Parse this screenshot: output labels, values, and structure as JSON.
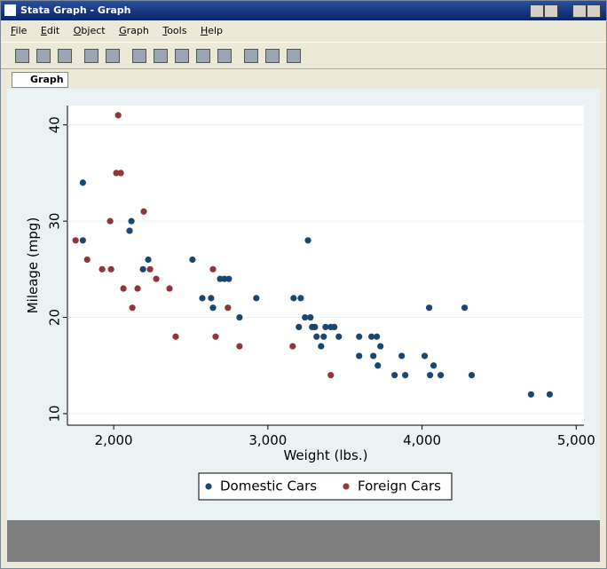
{
  "window": {
    "title": "Stata Graph - Graph",
    "menu": [
      "File",
      "Edit",
      "Object",
      "Graph",
      "Tools",
      "Help"
    ],
    "tab": "Graph"
  },
  "chart_data": {
    "type": "scatter",
    "x_label": "Weight (lbs.)",
    "y_label": "Mileage (mpg)",
    "xlim": [
      1700,
      5050
    ],
    "ylim": [
      8.8,
      42
    ],
    "xticks": [
      {
        "value": 2000,
        "label": "2,000"
      },
      {
        "value": 3000,
        "label": "3,000"
      },
      {
        "value": 4000,
        "label": "4,000"
      },
      {
        "value": 5000,
        "label": "5,000"
      }
    ],
    "yticks": [
      10,
      20,
      30,
      40
    ],
    "grid": true,
    "series": [
      {
        "name": "Domestic Cars",
        "color": "#1a476f",
        "x": [
          1800,
          1800,
          2115,
          2103,
          2190,
          2224,
          2511,
          2575,
          2632,
          2644,
          2690,
          2718,
          2747,
          2816,
          2925,
          3260,
          3167,
          3213,
          3201,
          3241,
          3276,
          3287,
          3305,
          3316,
          3362,
          3374,
          3408,
          3431,
          3345,
          3460,
          3592,
          3592,
          3672,
          3707,
          3684,
          3713,
          3730,
          3822,
          3868,
          3891,
          4017,
          4052,
          4046,
          4075,
          4121,
          4276,
          4322,
          4707,
          4828
        ],
        "values": [
          34,
          28,
          30,
          29,
          25,
          26,
          26,
          22,
          22,
          21,
          24,
          24,
          24,
          20,
          22,
          28,
          22,
          22,
          19,
          20,
          20,
          19,
          19,
          18,
          18,
          19,
          19,
          19,
          17,
          18,
          18,
          16,
          18,
          18,
          16,
          15,
          17,
          14,
          16,
          14,
          16,
          14,
          21,
          15,
          14,
          21,
          14,
          12,
          12
        ]
      },
      {
        "name": "Foreign Cars",
        "color": "#90353b",
        "x": [
          1753,
          2029,
          2017,
          2046,
          1977,
          1828,
          1925,
          1983,
          2063,
          2121,
          2155,
          2195,
          2236,
          2276,
          2362,
          2402,
          2644,
          2661,
          2741,
          2816,
          3161,
          3408
        ],
        "values": [
          28,
          41,
          35,
          35,
          30,
          26,
          25,
          25,
          23,
          21,
          23,
          31,
          25,
          24,
          23,
          18,
          25,
          18,
          21,
          17,
          17,
          14
        ]
      }
    ]
  }
}
